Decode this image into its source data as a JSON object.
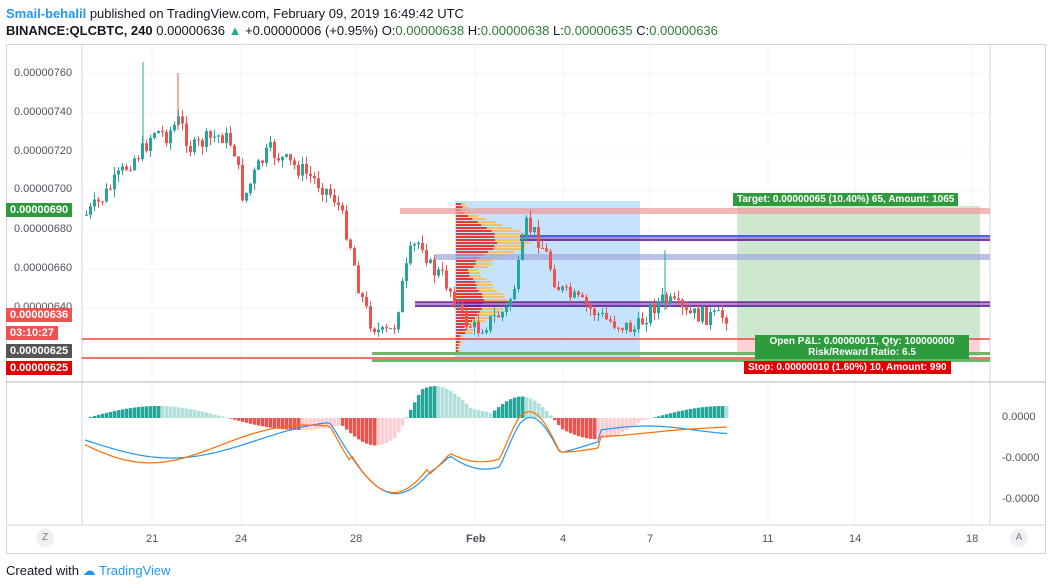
{
  "header": {
    "author": "Smail-behalil",
    "published": "published on TradingView.com, February 09, 2019 16:49:42 UTC",
    "symbol": "BINANCE:QLCBTC, 240",
    "last": "0.00000636",
    "change": "+0.00000006 (+0.95%)",
    "o_label": "O:",
    "o_val": "0.00000638",
    "h_label": "H:",
    "h_val": "0.00000638",
    "l_label": "L:",
    "l_val": "0.00000635",
    "c_label": "C:",
    "c_val": "0.00000636"
  },
  "price_axis": [
    "0.00000760",
    "0.00000740",
    "0.00000720",
    "0.00000700",
    "0.00000680",
    "0.00000660",
    "0.00000640"
  ],
  "tags": {
    "price_690": "0.00000690",
    "price_636": "0.00000636",
    "countdown": "03:10:27",
    "price_625a": "0.00000625",
    "price_625b": "0.00000625"
  },
  "macd_axis": [
    "0.0000",
    "-0.0000",
    "-0.0000"
  ],
  "x_axis": [
    "21",
    "24",
    "28",
    "Feb",
    "4",
    "7",
    "11",
    "14",
    "18"
  ],
  "position": {
    "target": "Target: 0.00000065 (10.40%) 65, Amount: 1065",
    "open_pl": "Open P&L: 0.00000011, Qty: 100000000",
    "risk_reward": "Risk/Reward Ratio: 6.5",
    "stop": "Stop: 0.00000010 (1.60%) 10, Amount: 990"
  },
  "buttons": {
    "left": "Z",
    "right": "A"
  },
  "footer": {
    "created": "Created with",
    "brand": "TradingView"
  },
  "colors": {
    "up": "#26a69a",
    "down": "#ef5350",
    "target": "#4caf50",
    "stop": "#f44336",
    "accent": "#2196f3"
  }
}
